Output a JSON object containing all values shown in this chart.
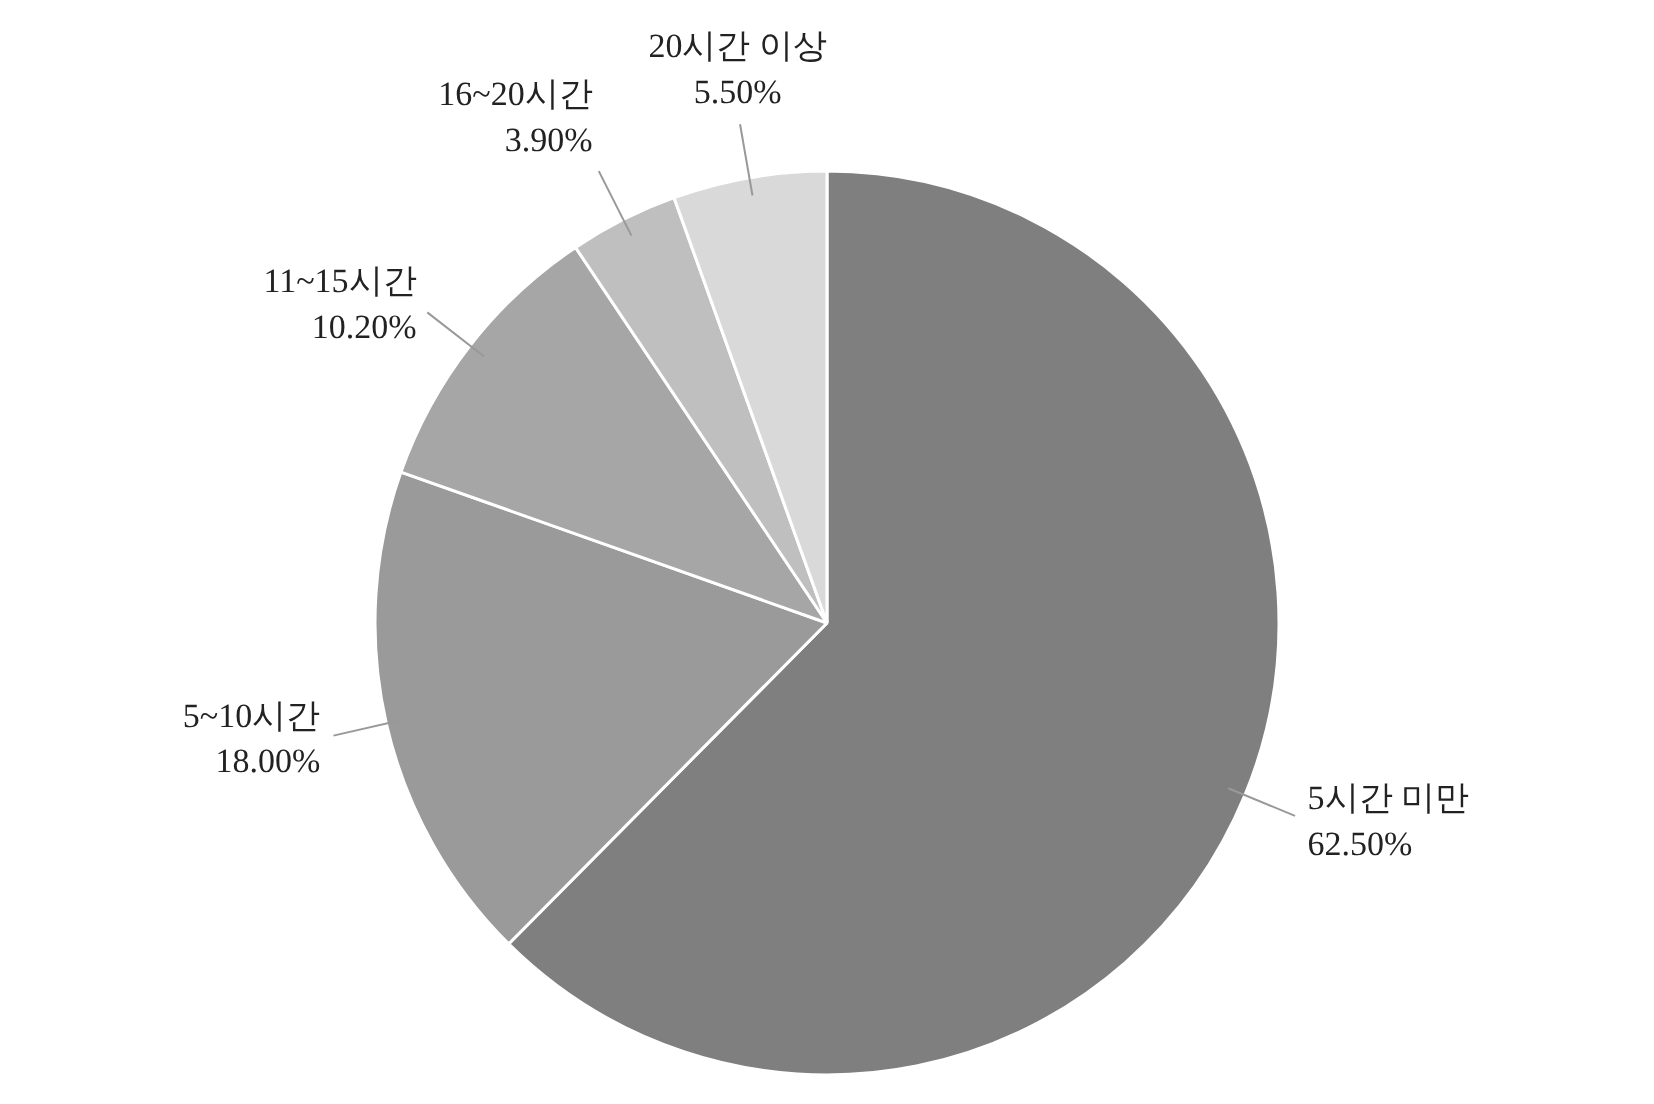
{
  "chart_data": {
    "type": "pie",
    "categories": [
      "5시간 미만",
      "5~10시간",
      "11~15시간",
      "16~20시간",
      "20시간 이상"
    ],
    "values": [
      62.5,
      18.0,
      10.2,
      3.9,
      5.5
    ],
    "value_labels": [
      "62.50%",
      "18.00%",
      "10.20%",
      "3.90%",
      "5.50%"
    ],
    "colors": [
      "#7f7f7f",
      "#9a9a9a",
      "#a6a6a6",
      "#bfbfbf",
      "#d9d9d9"
    ]
  }
}
